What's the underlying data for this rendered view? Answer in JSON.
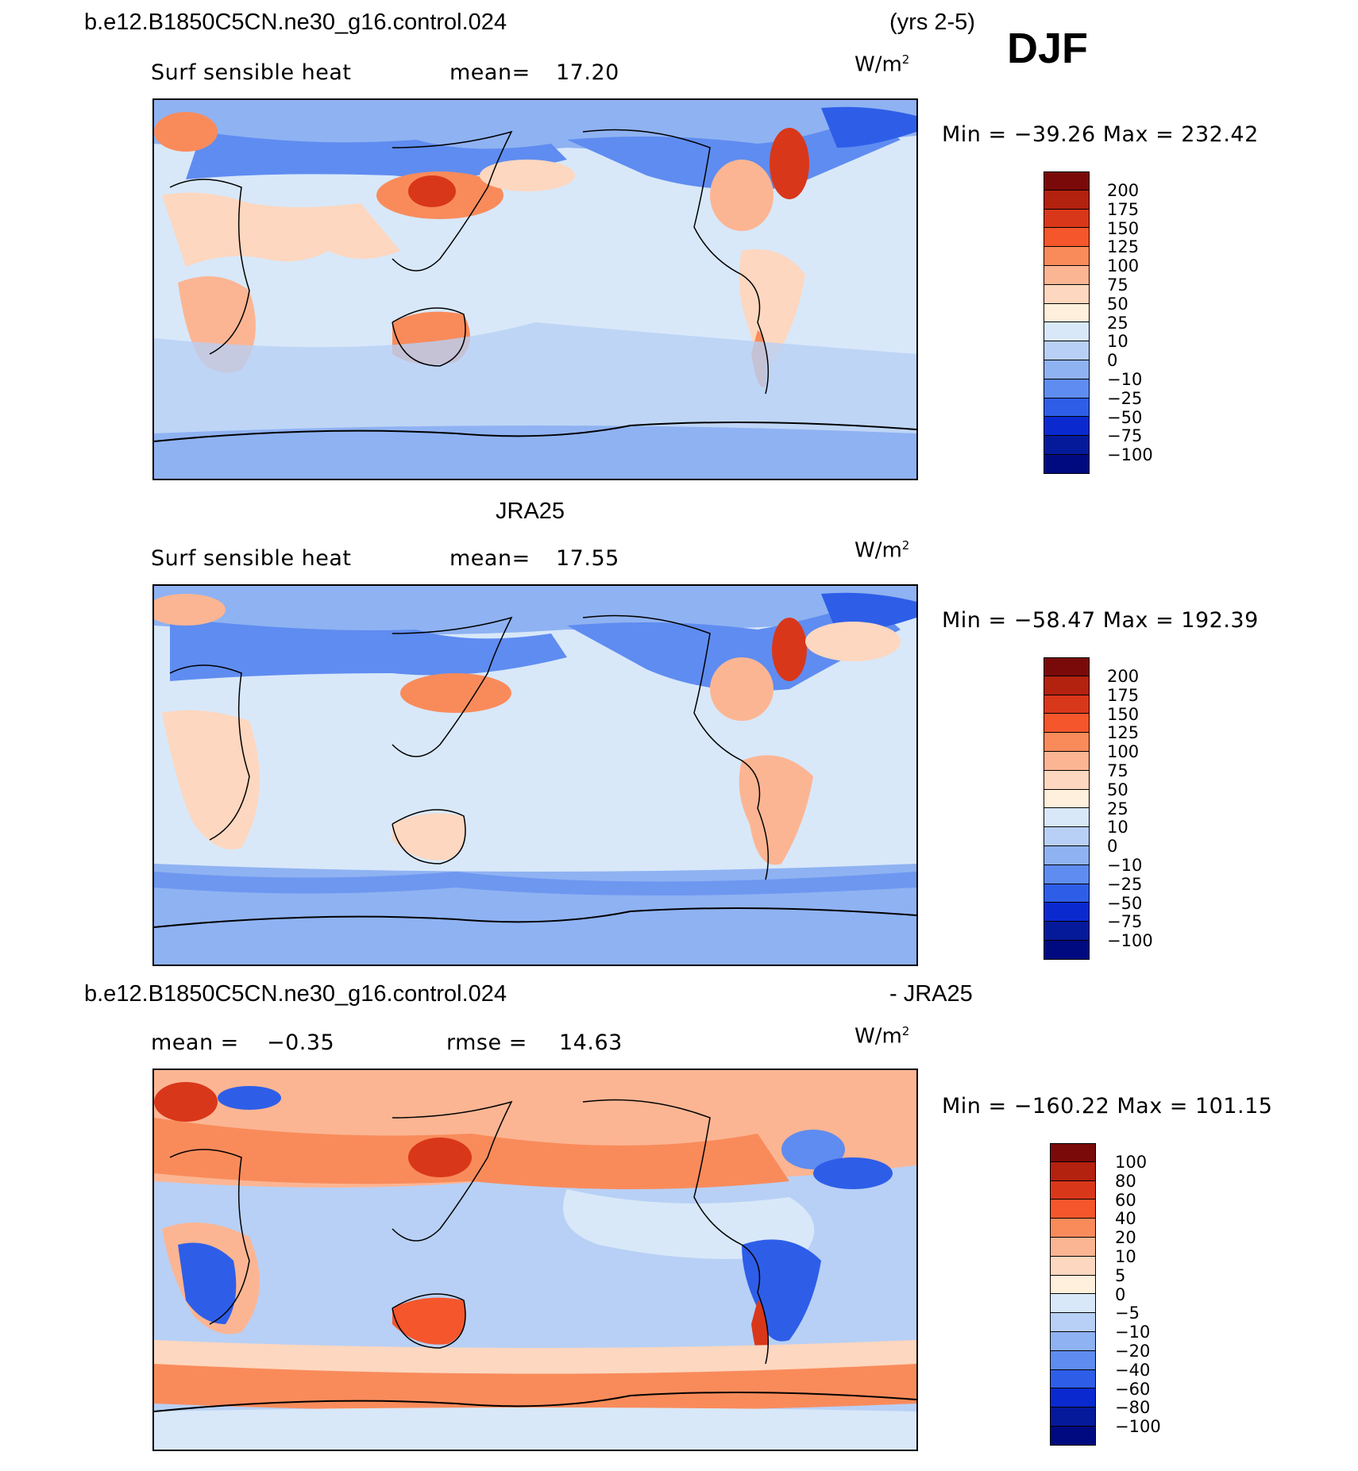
{
  "header": {
    "case_title": "b.e12.B1850C5CN.ne30_g16.control.024",
    "years": "(yrs 2-5)",
    "season": "DJF"
  },
  "panels": [
    {
      "title": "",
      "variable": "Surf sensible heat",
      "stat_label": "mean=",
      "stat_value": "17.20",
      "units": "W/m",
      "units_exp": "2",
      "minmax": "Min = −39.26  Max = 232.42",
      "colorbar_labels": [
        "200",
        "175",
        "150",
        "125",
        "100",
        "75",
        "50",
        "25",
        "10",
        "0",
        "−10",
        "−25",
        "−50",
        "−75",
        "−100"
      ]
    },
    {
      "title": "JRA25",
      "variable": "Surf sensible heat",
      "stat_label": "mean=",
      "stat_value": "17.55",
      "units": "W/m",
      "units_exp": "2",
      "minmax": "Min = −58.47  Max = 192.39",
      "colorbar_labels": [
        "200",
        "175",
        "150",
        "125",
        "100",
        "75",
        "50",
        "25",
        "10",
        "0",
        "−10",
        "−25",
        "−50",
        "−75",
        "−100"
      ]
    },
    {
      "title_left": "b.e12.B1850C5CN.ne30_g16.control.024",
      "title_right": "- JRA25",
      "mean_label": "mean =",
      "mean_value": "−0.35",
      "rmse_label": "rmse =",
      "rmse_value": "14.63",
      "units": "W/m",
      "units_exp": "2",
      "minmax": "Min = −160.22  Max = 101.15",
      "colorbar_labels": [
        "100",
        "80",
        "60",
        "40",
        "20",
        "10",
        "5",
        "0",
        "−5",
        "−10",
        "−20",
        "−40",
        "−60",
        "−80",
        "−100"
      ]
    }
  ],
  "colors": {
    "main_scale": [
      "#7a0a0a",
      "#b3210f",
      "#d9371a",
      "#f5562c",
      "#f98b5b",
      "#fcb593",
      "#fdd7bf",
      "#fef0dc",
      "#d8e8f9",
      "#b8d0f5",
      "#8fb2f2",
      "#5f8cf0",
      "#2e5ee8",
      "#0a2ad0",
      "#051a9a",
      "#000a80"
    ],
    "diff_scale": [
      "#7a0a0a",
      "#b3210f",
      "#d9371a",
      "#f5562c",
      "#f98b5b",
      "#fcb593",
      "#fdd7bf",
      "#fef0dc",
      "#d8e8f9",
      "#b8d0f5",
      "#8fb2f2",
      "#5f8cf0",
      "#2e5ee8",
      "#0a2ad0",
      "#051a9a",
      "#000a80"
    ]
  }
}
